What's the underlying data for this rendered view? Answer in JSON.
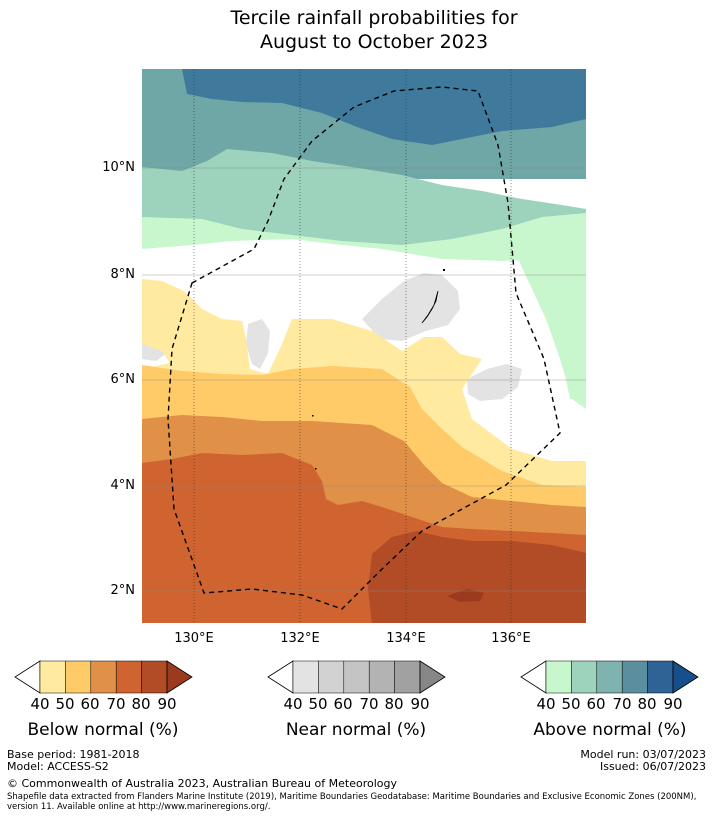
{
  "title_line1": "Tercile rainfall probabilities for",
  "title_line2": "August to October 2023",
  "map": {
    "lat_labels": [
      "10°N",
      "8°N",
      "6°N",
      "4°N",
      "2°N"
    ],
    "lon_labels": [
      "130°E",
      "132°E",
      "134°E",
      "136°E"
    ],
    "colors": {
      "above_40": "#c9f7cd",
      "above_50": "#9dd3bc",
      "above_60": "#6fa6a6",
      "above_70": "#3f7a9c",
      "near_40": "#e3e3e3",
      "below_40": "#ffeaa0",
      "below_50": "#ffcb68",
      "below_60": "#e19048",
      "below_70": "#cf6431",
      "below_80": "#b24c26",
      "boundary": "#000000"
    }
  },
  "legends": [
    {
      "title": "Below normal (%)",
      "ticks": [
        "40",
        "50",
        "60",
        "70",
        "80",
        "90"
      ],
      "colors": [
        "#ffffff",
        "#ffeaa0",
        "#ffcb68",
        "#e19048",
        "#cf6431",
        "#b24c26",
        "#9a3a1e",
        "#8a3018"
      ]
    },
    {
      "title": "Near normal (%)",
      "ticks": [
        "40",
        "50",
        "60",
        "70",
        "80",
        "90"
      ],
      "colors": [
        "#ffffff",
        "#e3e3e3",
        "#d2d2d2",
        "#c4c4c4",
        "#b3b3b3",
        "#a1a1a1",
        "#878787",
        "#7a7a7a"
      ]
    },
    {
      "title": "Above normal (%)",
      "ticks": [
        "40",
        "50",
        "60",
        "70",
        "80",
        "90"
      ],
      "colors": [
        "#ffffff",
        "#c9f7cd",
        "#9dd3bc",
        "#7fb3ae",
        "#5b8fa0",
        "#2f6396",
        "#174f8c",
        "#0f4585"
      ]
    }
  ],
  "footer": {
    "base_period": "Base period: 1981-2018",
    "model": "Model: ACCESS-S2",
    "model_run": "Model run: 03/07/2023",
    "issued": "Issued: 06/07/2023",
    "copyright": "© Commonwealth of Australia 2023, Australian Bureau of Meteorology",
    "shapefile_note": "Shapefile data extracted from Flanders Marine Institute (2019), Maritime Boundaries Geodatabase: Maritime Boundaries and Exclusive Economic Zones (200NM), version 11. Available online at http://www.marineregions.org/."
  }
}
